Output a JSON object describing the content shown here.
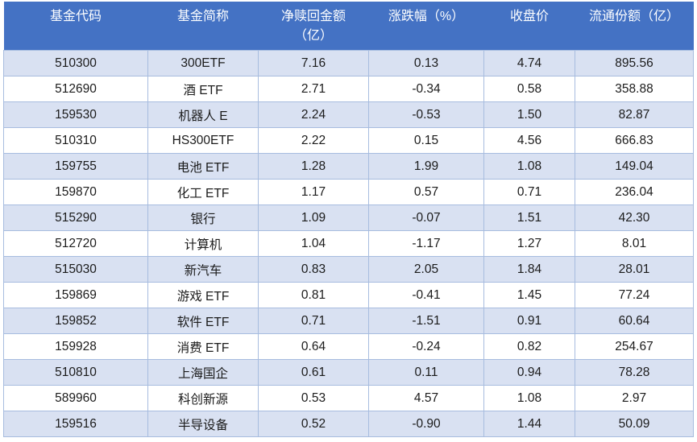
{
  "colors": {
    "header_bg": "#4472C4",
    "header_text": "#FDFEFF",
    "band_row_bg": "#D9E1F2",
    "plain_row_bg": "#FFFFFF",
    "grid_border": "#A7BCDF",
    "body_text": "#1B1B1B"
  },
  "chart_data": {
    "type": "table",
    "columns": [
      {
        "key": "fund_code",
        "label": "基金代码"
      },
      {
        "key": "fund_name",
        "label": "基金简称"
      },
      {
        "key": "net_redemption",
        "label": "净赎回金额",
        "label_line2": "（亿）"
      },
      {
        "key": "change_pct",
        "label": "涨跌幅（%）"
      },
      {
        "key": "close_price",
        "label": "收盘价"
      },
      {
        "key": "float_shares",
        "label": "流通份额（亿）"
      }
    ],
    "rows": [
      [
        "510300",
        "300ETF",
        "7.16",
        "0.13",
        "4.74",
        "895.56"
      ],
      [
        "512690",
        "酒 ETF",
        "2.71",
        "-0.34",
        "0.58",
        "358.88"
      ],
      [
        "159530",
        "机器人 E",
        "2.24",
        "-0.53",
        "1.50",
        "82.87"
      ],
      [
        "510310",
        "HS300ETF",
        "2.22",
        "0.15",
        "4.56",
        "666.83"
      ],
      [
        "159755",
        "电池 ETF",
        "1.28",
        "1.99",
        "1.08",
        "149.04"
      ],
      [
        "159870",
        "化工 ETF",
        "1.17",
        "0.57",
        "0.71",
        "236.04"
      ],
      [
        "515290",
        "银行",
        "1.09",
        "-0.07",
        "1.51",
        "42.30"
      ],
      [
        "512720",
        "计算机",
        "1.04",
        "-1.17",
        "1.27",
        "8.01"
      ],
      [
        "515030",
        "新汽车",
        "0.83",
        "2.05",
        "1.84",
        "28.01"
      ],
      [
        "159869",
        "游戏 ETF",
        "0.81",
        "-0.41",
        "1.45",
        "77.24"
      ],
      [
        "159852",
        "软件 ETF",
        "0.71",
        "-1.51",
        "0.91",
        "60.64"
      ],
      [
        "159928",
        "消费 ETF",
        "0.64",
        "-0.24",
        "0.82",
        "254.67"
      ],
      [
        "510810",
        "上海国企",
        "0.61",
        "0.11",
        "0.94",
        "78.28"
      ],
      [
        "589960",
        "科创新源",
        "0.53",
        "4.57",
        "1.08",
        "2.97"
      ],
      [
        "159516",
        "半导设备",
        "0.52",
        "-0.90",
        "1.44",
        "50.09"
      ]
    ]
  }
}
